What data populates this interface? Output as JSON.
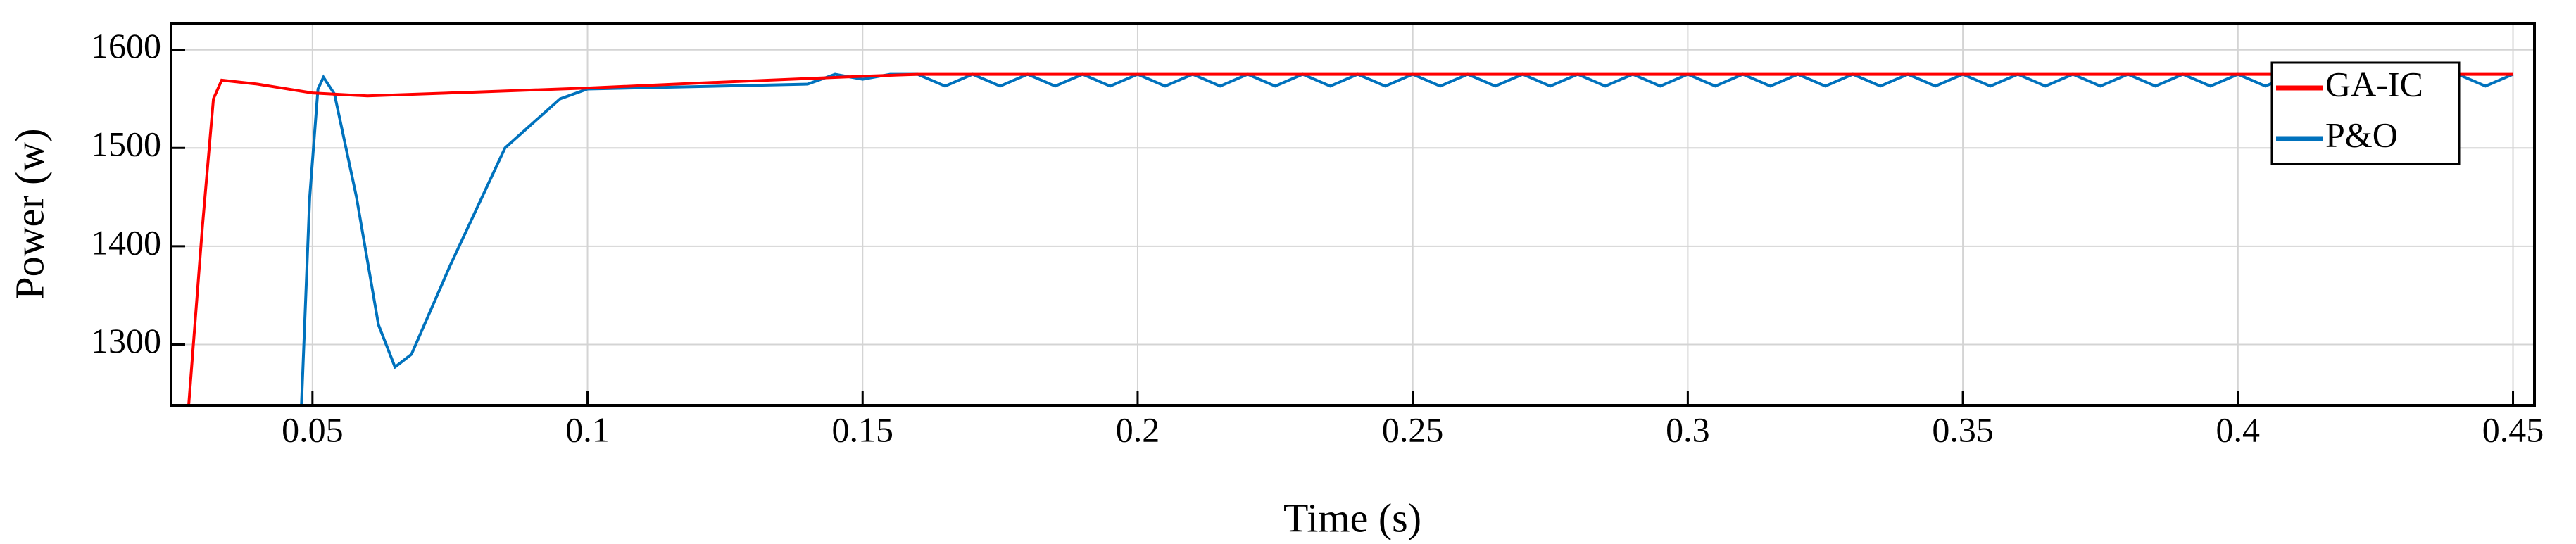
{
  "chart_data": {
    "type": "line",
    "xlabel": "Time (s)",
    "ylabel": "Power (w)",
    "xlim": [
      0.0243,
      0.4539
    ],
    "ylim": [
      1238,
      1627
    ],
    "xticks": [
      0.05,
      0.1,
      0.15,
      0.2,
      0.25,
      0.3,
      0.35,
      0.4,
      0.45
    ],
    "yticks": [
      1300,
      1400,
      1500,
      1600
    ],
    "grid": true,
    "legend": "upper right",
    "series": [
      {
        "name": "GA-IC",
        "color": "#ff0000",
        "x": [
          0.0275,
          0.03,
          0.032,
          0.0335,
          0.04,
          0.05,
          0.06,
          0.08,
          0.1,
          0.12,
          0.15,
          0.16,
          0.45
        ],
        "values": [
          1238,
          1420,
          1550,
          1569,
          1565,
          1556,
          1553,
          1557,
          1561,
          1566,
          1573,
          1575,
          1575
        ]
      },
      {
        "name": "P&O",
        "color": "#0072bd",
        "x": [
          0.048,
          0.0495,
          0.051,
          0.052,
          0.054,
          0.058,
          0.062,
          0.065,
          0.068,
          0.075,
          0.085,
          0.095,
          0.1,
          0.14,
          0.145,
          0.15,
          0.155,
          0.16,
          0.165,
          0.17,
          0.175,
          0.18,
          0.185,
          0.19,
          0.195,
          0.2,
          0.205,
          0.21,
          0.215,
          0.22,
          0.225,
          0.23,
          0.235,
          0.24,
          0.245,
          0.25,
          0.255,
          0.26,
          0.265,
          0.27,
          0.275,
          0.28,
          0.285,
          0.29,
          0.295,
          0.3,
          0.305,
          0.31,
          0.315,
          0.32,
          0.325,
          0.33,
          0.335,
          0.34,
          0.345,
          0.35,
          0.355,
          0.36,
          0.365,
          0.37,
          0.375,
          0.38,
          0.385,
          0.39,
          0.395,
          0.4,
          0.405,
          0.41,
          0.415,
          0.42,
          0.425,
          0.43,
          0.435,
          0.44,
          0.445,
          0.45
        ],
        "values": [
          1238,
          1450,
          1560,
          1572,
          1555,
          1450,
          1320,
          1277,
          1290,
          1380,
          1500,
          1550,
          1560,
          1565,
          1575,
          1570,
          1575,
          1575,
          1563,
          1575,
          1563,
          1575,
          1563,
          1575,
          1563,
          1575,
          1563,
          1575,
          1563,
          1575,
          1563,
          1575,
          1563,
          1575,
          1563,
          1575,
          1563,
          1575,
          1563,
          1575,
          1563,
          1575,
          1563,
          1575,
          1563,
          1575,
          1563,
          1575,
          1563,
          1575,
          1563,
          1575,
          1563,
          1575,
          1563,
          1575,
          1563,
          1575,
          1563,
          1575,
          1563,
          1575,
          1563,
          1575,
          1563,
          1575,
          1563,
          1575,
          1563,
          1575,
          1563,
          1575,
          1563,
          1575,
          1563,
          1575
        ]
      }
    ]
  }
}
